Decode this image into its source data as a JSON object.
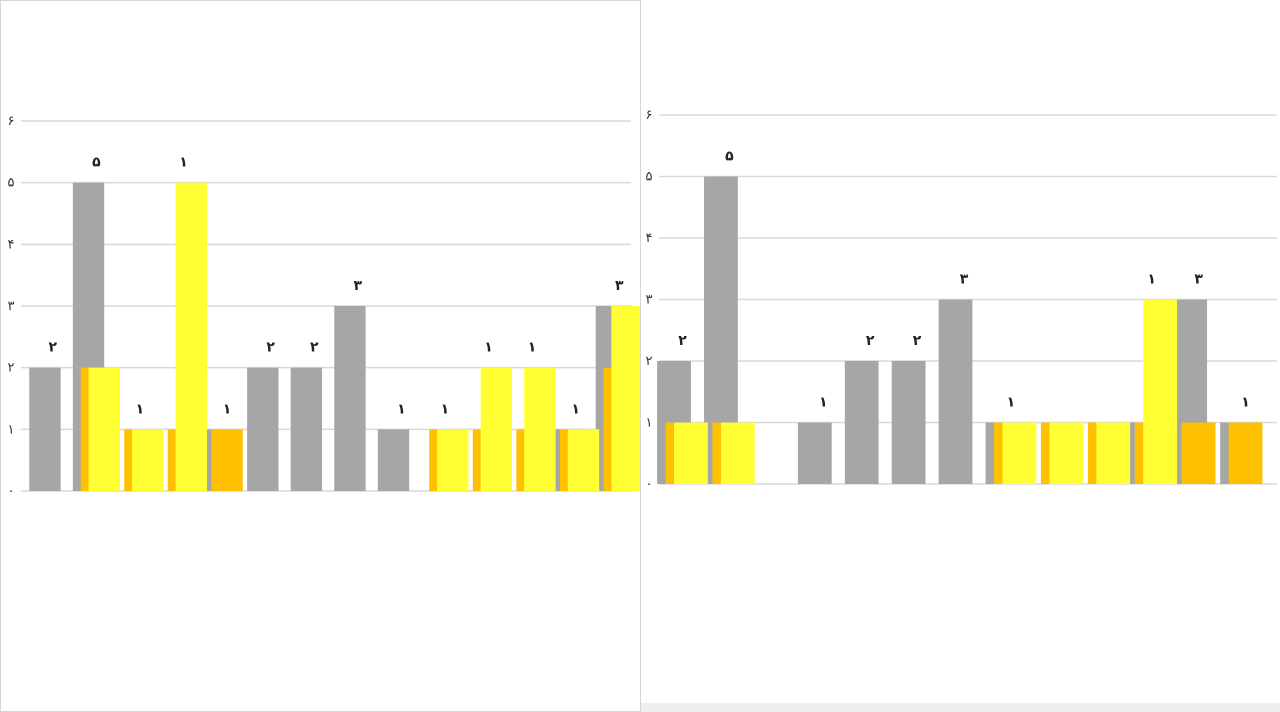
{
  "charts": [
    {
      "id": "left",
      "title": "",
      "chart_data": {
        "type": "bar",
        "ylim": [
          0,
          6
        ],
        "y_ticks": [
          "۰",
          "۱",
          "۲",
          "۳",
          "۴",
          "۵",
          "۶"
        ],
        "grid": true,
        "categories": [
          "",
          "",
          "",
          "",
          "",
          "",
          "",
          "",
          "",
          "",
          "",
          "",
          "",
          ""
        ],
        "series": [
          {
            "color": "#a6a6a6",
            "values": [
              2,
              5,
              0,
              0,
              1,
              2,
              2,
              3,
              1,
              0,
              0,
              0,
              1,
              3
            ]
          },
          {
            "color": "#ffc000",
            "values": [
              0,
              2,
              1,
              1,
              1,
              0,
              0,
              0,
              0,
              1,
              1,
              1,
              1,
              2
            ]
          },
          {
            "color": "#ffff33",
            "values": [
              0,
              2,
              1,
              5,
              0,
              0,
              0,
              0,
              0,
              1,
              2,
              2,
              1,
              3
            ]
          }
        ],
        "data_labels": [
          "۲",
          "۵",
          "۱",
          "۱",
          "۱",
          "۲",
          "۲",
          "۳",
          "۱",
          "۱",
          "۱",
          "۱",
          "۱",
          "۳"
        ]
      }
    },
    {
      "id": "right",
      "title": "",
      "chart_data": {
        "type": "bar",
        "ylim": [
          0,
          6
        ],
        "y_ticks": [
          "۰",
          "۱",
          "۲",
          "۳",
          "۴",
          "۵",
          "۶"
        ],
        "grid": true,
        "categories": [
          "",
          "",
          "",
          "",
          "",
          "",
          "",
          "",
          "",
          "",
          "",
          "",
          ""
        ],
        "series": [
          {
            "color": "#a6a6a6",
            "values": [
              2,
              5,
              0,
              1,
              2,
              2,
              3,
              1,
              0,
              0,
              1,
              3,
              1
            ]
          },
          {
            "color": "#ffc000",
            "values": [
              1,
              1,
              0,
              0,
              0,
              0,
              0,
              1,
              1,
              1,
              1,
              1,
              1
            ]
          },
          {
            "color": "#ffff33",
            "values": [
              1,
              1,
              0,
              0,
              0,
              0,
              0,
              1,
              1,
              1,
              3,
              0,
              0
            ]
          }
        ],
        "data_labels": [
          "۲",
          "۵",
          "",
          "۱",
          "۲",
          "۲",
          "۳",
          "۱",
          "",
          "",
          "۱",
          "۳",
          "۱"
        ]
      }
    }
  ]
}
